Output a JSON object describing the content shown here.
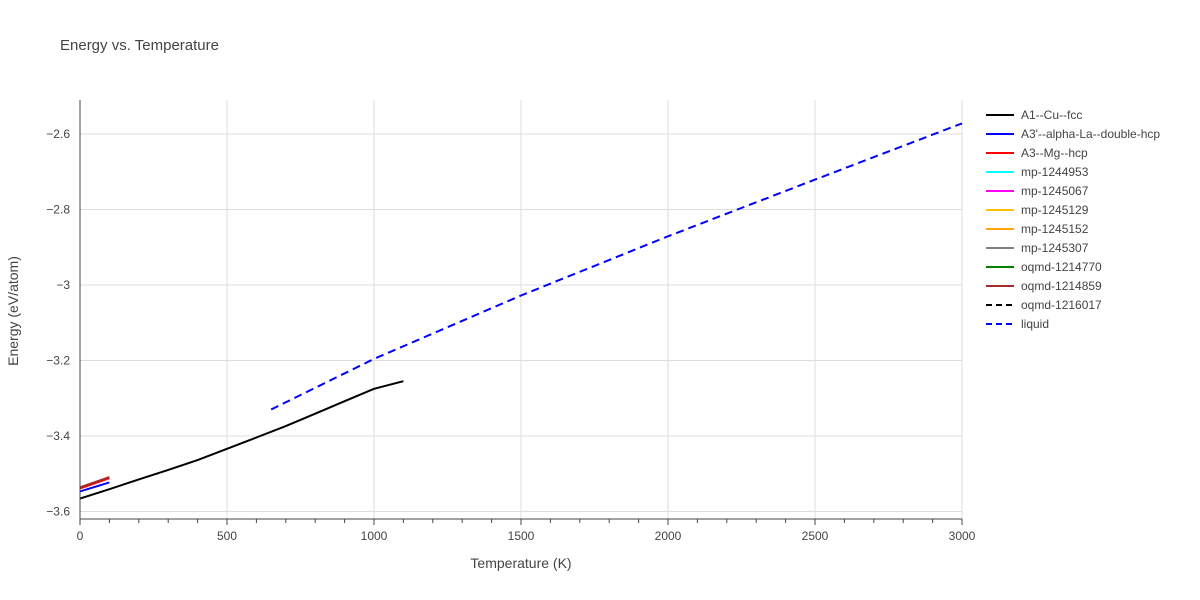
{
  "chart_data": {
    "type": "line",
    "title": "Energy vs. Temperature",
    "xlabel": "Temperature (K)",
    "ylabel": "Energy (eV/atom)",
    "xlim": [
      0,
      3000
    ],
    "ylim": [
      -3.62,
      -2.51
    ],
    "x_ticks": [
      0,
      500,
      1000,
      1500,
      2000,
      2500,
      3000
    ],
    "x_tick_labels": [
      "0",
      "500",
      "1000",
      "1500",
      "2000",
      "2500",
      "3000"
    ],
    "y_ticks": [
      -3.6,
      -3.4,
      -3.2,
      -3.0,
      -2.8,
      -2.6
    ],
    "y_tick_labels": [
      "−3.6",
      "−3.4",
      "−3.2",
      "−3",
      "−2.8",
      "−2.6"
    ],
    "grid": true,
    "legend_position": "right",
    "series": [
      {
        "name": "A1--Cu--fcc",
        "color": "#000000",
        "dash": "solid",
        "x": [
          0,
          100,
          200,
          300,
          400,
          500,
          600,
          700,
          800,
          900,
          1000,
          1100
        ],
        "y": [
          -3.566,
          -3.541,
          -3.515,
          -3.49,
          -3.464,
          -3.434,
          -3.404,
          -3.374,
          -3.341,
          -3.308,
          -3.275,
          -3.255
        ]
      },
      {
        "name": "A3'--alpha-La--double-hcp",
        "color": "#0000ff",
        "dash": "solid",
        "x": [
          0,
          100
        ],
        "y": [
          -3.547,
          -3.523
        ]
      },
      {
        "name": "A3--Mg--hcp",
        "color": "#ff0000",
        "dash": "solid",
        "x": [
          0,
          100
        ],
        "y": [
          -3.539,
          -3.512
        ]
      },
      {
        "name": "mp-1244953",
        "color": "#00ffff",
        "dash": "solid",
        "x": [],
        "y": []
      },
      {
        "name": "mp-1245067",
        "color": "#ff00ff",
        "dash": "solid",
        "x": [],
        "y": []
      },
      {
        "name": "mp-1245129",
        "color": "#ffbf00",
        "dash": "solid",
        "x": [],
        "y": []
      },
      {
        "name": "mp-1245152",
        "color": "#ffa500",
        "dash": "solid",
        "x": [],
        "y": []
      },
      {
        "name": "mp-1245307",
        "color": "#808080",
        "dash": "solid",
        "x": [],
        "y": []
      },
      {
        "name": "oqmd-1214770",
        "color": "#008000",
        "dash": "solid",
        "x": [],
        "y": []
      },
      {
        "name": "oqmd-1214859",
        "color": "#a52a2a",
        "dash": "solid",
        "x": [
          0,
          100
        ],
        "y": [
          -3.536,
          -3.509
        ]
      },
      {
        "name": "oqmd-1216017",
        "color": "#000000",
        "dash": "dash",
        "x": [],
        "y": []
      },
      {
        "name": "liquid",
        "color": "#0000ff",
        "dash": "dash",
        "x": [
          650,
          1000,
          1500,
          2000,
          2500,
          3000
        ],
        "y": [
          -3.33,
          -3.196,
          -3.028,
          -2.871,
          -2.721,
          -2.572
        ]
      }
    ]
  }
}
